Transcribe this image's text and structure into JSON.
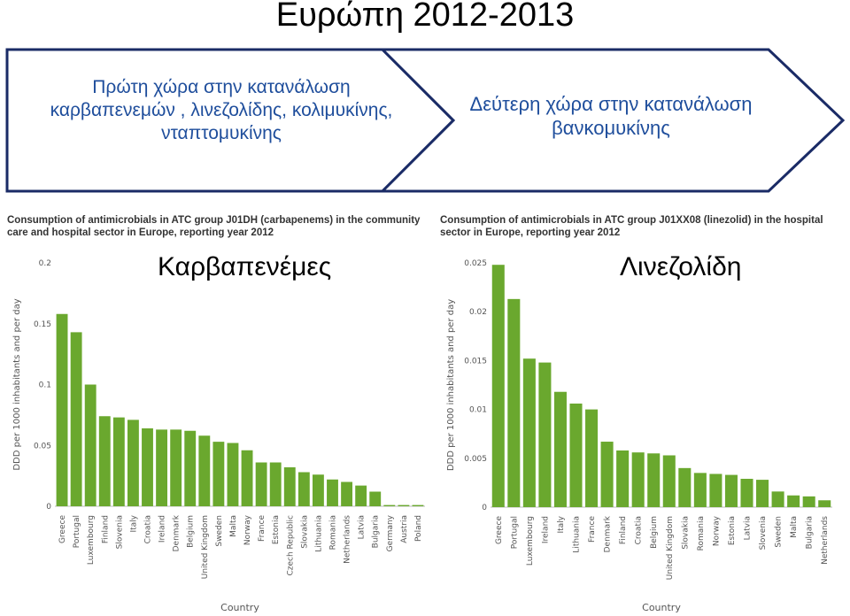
{
  "page": {
    "title": "Ευρώπη 2012-2013",
    "banner_left": "Πρώτη χώρα στην κατανάλωση καρβαπενεμών , λινεζολίδης, κολιμυκίνης, νταπτομυκίνης",
    "banner_right": "Δεύτερη χώρα στην κατανάλωση βανκομυκίνης",
    "overlay_left": "Καρβαπενέμες",
    "overlay_right": "Λινεζολίδη",
    "colors": {
      "bar": "#6aa82e",
      "banner_text": "#1f4e9c",
      "banner_stroke": "#1a2b66"
    }
  },
  "chart_data": [
    {
      "type": "bar",
      "title": "Consumption of antimicrobials in ATC group J01DH (carbapenems) in the community care and hospital sector in Europe, reporting year 2012",
      "xlabel": "Country",
      "ylabel": "DDD per 1000 inhabitants and per day",
      "ylim": [
        0,
        0.2
      ],
      "ticks": [
        0,
        0.05,
        0.1,
        0.15,
        0.2
      ],
      "tick_labels": [
        "0",
        "0.05",
        "0.1",
        "0.15",
        "0.2"
      ],
      "categories": [
        "Greece",
        "Portugal",
        "Luxembourg",
        "Finland",
        "Slovenia",
        "Italy",
        "Croatia",
        "Ireland",
        "Denmark",
        "Belgium",
        "United Kingdom",
        "Sweden",
        "Malta",
        "Norway",
        "France",
        "Estonia",
        "Czech Republic",
        "Slovakia",
        "Lithuania",
        "Romania",
        "Netherlands",
        "Latvia",
        "Bulgaria",
        "Germany",
        "Austria",
        "Poland"
      ],
      "values": [
        0.158,
        0.143,
        0.1,
        0.074,
        0.073,
        0.071,
        0.064,
        0.063,
        0.063,
        0.062,
        0.058,
        0.053,
        0.052,
        0.046,
        0.036,
        0.036,
        0.032,
        0.028,
        0.026,
        0.022,
        0.02,
        0.017,
        0.012,
        0.001,
        0.001,
        0.001
      ]
    },
    {
      "type": "bar",
      "title": "Consumption of antimicrobials in ATC group J01XX08 (linezolid) in the hospital sector in Europe, reporting year 2012",
      "xlabel": "Country",
      "ylabel": "DDD per 1000 inhabitants and per day",
      "ylim": [
        0,
        0.025
      ],
      "ticks": [
        0,
        0.005,
        0.01,
        0.015,
        0.02,
        0.025
      ],
      "tick_labels": [
        "0",
        "0.005",
        "0.01",
        "0.015",
        "0.02",
        "0.025"
      ],
      "categories": [
        "Greece",
        "Portugal",
        "Luxembourg",
        "Ireland",
        "Italy",
        "Lithuania",
        "France",
        "Denmark",
        "Finland",
        "Croatia",
        "Belgium",
        "United Kingdom",
        "Slovakia",
        "Romania",
        "Norway",
        "Estonia",
        "Latvia",
        "Slovenia",
        "Sweden",
        "Malta",
        "Bulgaria",
        "Netherlands"
      ],
      "values": [
        0.0248,
        0.0213,
        0.0152,
        0.0148,
        0.0118,
        0.0106,
        0.01,
        0.0067,
        0.0058,
        0.0056,
        0.0055,
        0.0053,
        0.004,
        0.0035,
        0.0034,
        0.0033,
        0.0029,
        0.0028,
        0.0016,
        0.0012,
        0.0011,
        0.0007
      ]
    }
  ]
}
